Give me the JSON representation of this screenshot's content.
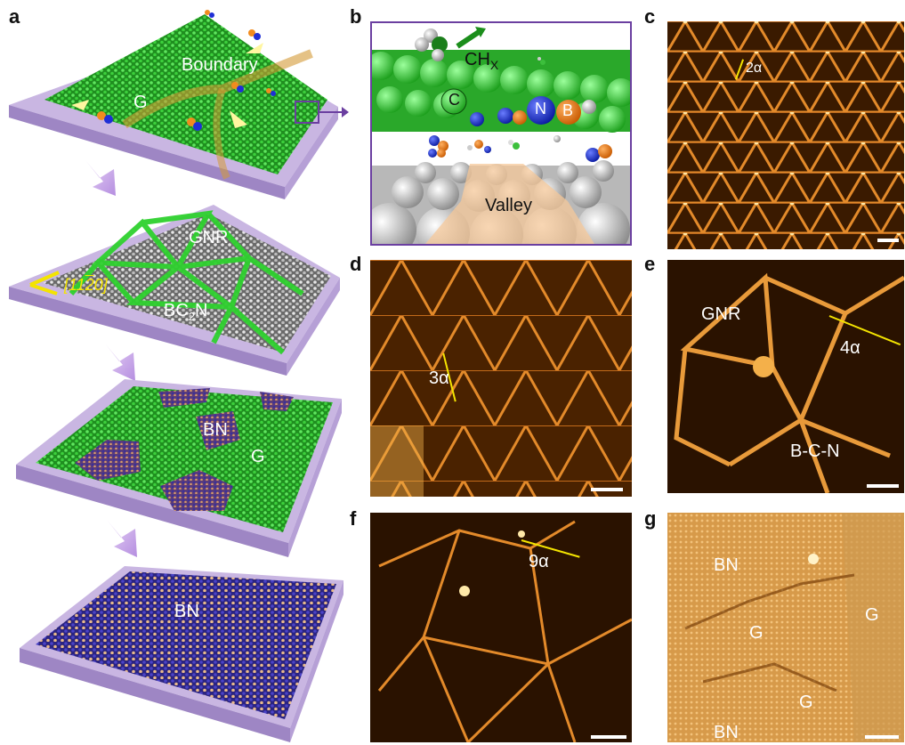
{
  "panel_labels": {
    "a": "a",
    "b": "b",
    "c": "c",
    "d": "d",
    "e": "e",
    "f": "f",
    "g": "g"
  },
  "panel_a": {
    "layer1": {
      "boundary": "Boundary",
      "g": "G"
    },
    "layer2": {
      "gnr": "GNR",
      "direction": "[11",
      "direction_bar": "2",
      "direction_end": "0]",
      "bc2n_main": "BC",
      "bc2n_sub": "2",
      "bc2n_end": "N"
    },
    "layer3": {
      "bn": "BN",
      "g": "G"
    },
    "layer4": {
      "bn": "BN"
    }
  },
  "panel_b": {
    "chx_main": "CH",
    "chx_sub": "X",
    "c": "C",
    "n": "N",
    "b": "B",
    "valley": "Valley"
  },
  "panel_c": {
    "period": "2α"
  },
  "panel_d": {
    "period": "3α"
  },
  "panel_e": {
    "gnr": "GNR",
    "period": "4α",
    "bcn": "B-C-N"
  },
  "panel_f": {
    "period": "9α"
  },
  "panel_g": {
    "bn_top": "BN",
    "g_mid": "G",
    "g_right": "G",
    "g_bottom": "G",
    "bn_bottom": "BN"
  },
  "colors": {
    "graphene": "#2fd12f",
    "substrate": "#b9a4d6",
    "bn": "#3a2f9c",
    "stm_dark": "#2a1200",
    "stm_bright": "#f0a03a",
    "arrow_yellow": "#f4e400",
    "panel_b_border": "#6b3fa0"
  }
}
